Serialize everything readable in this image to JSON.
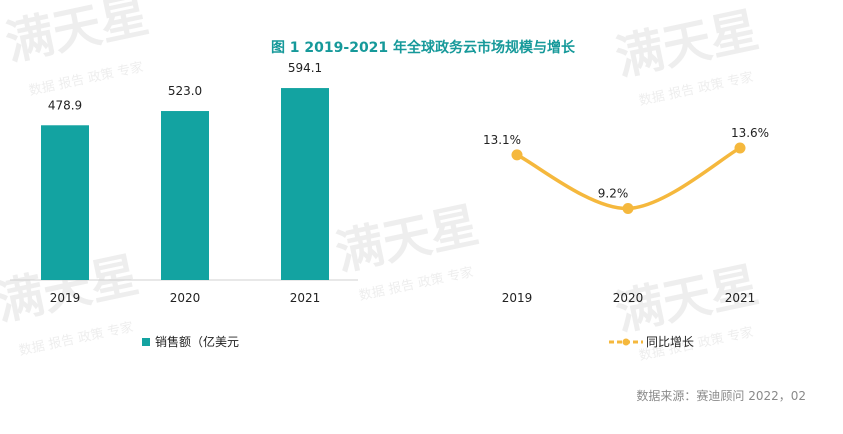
{
  "title": "图 1   2019-2021 年全球政务云市场规模与增长",
  "source": "数据来源：赛迪顾问   2022，02",
  "watermark": {
    "brand": "满天星",
    "tagline": "数据 报告 政策 专家"
  },
  "colors": {
    "bar": "#13a3a1",
    "line": "#f5b83d",
    "title": "#16999a",
    "text": "#222222",
    "axis": "#d0d0d0",
    "source": "#8a8a8a"
  },
  "chart_data": [
    {
      "type": "bar",
      "title": "",
      "categories": [
        "2019",
        "2020",
        "2021"
      ],
      "values": [
        478.9,
        523.0,
        594.1
      ],
      "value_labels": [
        "478.9",
        "523.0",
        "594.1"
      ],
      "legend": "销售额（亿美元",
      "ylim": [
        0,
        650
      ]
    },
    {
      "type": "line",
      "title": "",
      "categories": [
        "2019",
        "2020",
        "2021"
      ],
      "values": [
        13.1,
        9.2,
        13.6
      ],
      "value_labels": [
        "13.1%",
        "9.2%",
        "13.6%"
      ],
      "legend": "同比增长",
      "ylim": [
        4,
        20
      ]
    }
  ]
}
